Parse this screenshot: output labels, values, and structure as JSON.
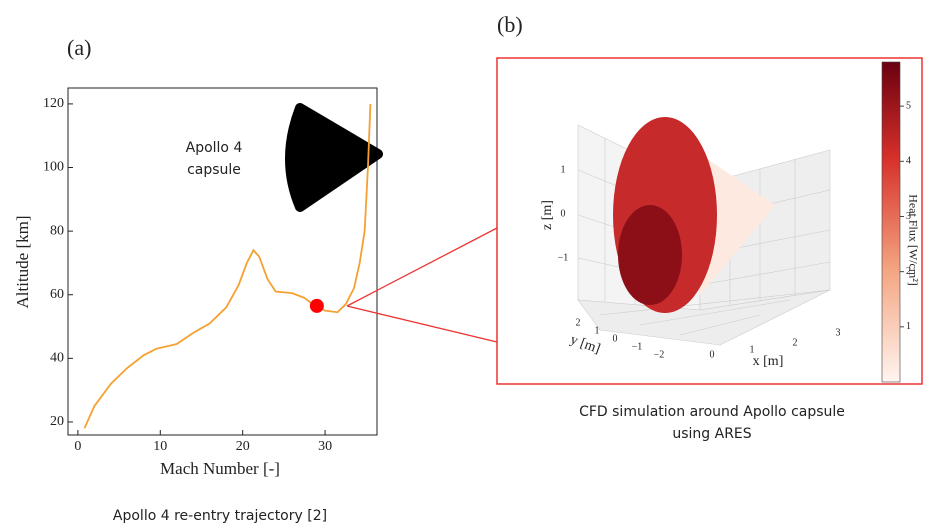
{
  "chart_data": {
    "type": "line",
    "x_label": "Mach Number [-]",
    "y_label": "Altitude [km]",
    "x": [
      0.8,
      2,
      4,
      6,
      8,
      9.5,
      12,
      14,
      16,
      18,
      19.5,
      20.5,
      21.3,
      22,
      23,
      24,
      26,
      27.5,
      28.5,
      30,
      31.5,
      32.5,
      33.5,
      34.2,
      34.8,
      35.2,
      35.5
    ],
    "series": [
      {
        "color": "#f5a030",
        "values": [
          18,
          25,
          32,
          37,
          41,
          43,
          44.5,
          48,
          51,
          56,
          63,
          70,
          74,
          72,
          65,
          61,
          60.5,
          59,
          57,
          55,
          54.5,
          57,
          62,
          70,
          80,
          100,
          120
        ]
      }
    ],
    "highlight": {
      "x": 29,
      "y": 56.5,
      "color": "#ff0000"
    },
    "xlim": [
      -1.2,
      36.3
    ],
    "ylim": [
      15.9,
      125
    ],
    "xticks": [
      0,
      10,
      20,
      30
    ],
    "yticks": [
      20,
      40,
      60,
      80,
      100,
      120
    ],
    "annotation": "Apollo 4\ncapsule"
  },
  "panel_labels": {
    "a": "(a)",
    "b": "(b)"
  },
  "captions": {
    "a": "Apollo 4 re-entry trajectory [2]",
    "b": [
      "CFD simulation around Apollo capsule",
      "using ARES"
    ]
  },
  "panel_b": {
    "z_label": "z [m]",
    "y_label": "y [m]",
    "x_label": "x [m]",
    "colorbar_label": "Heat Flux [W/cm²]",
    "z_ticks": [
      "1",
      "0",
      "−1"
    ],
    "y_ticks": [
      "2",
      "1",
      "0",
      "−1",
      "−2"
    ],
    "x_ticks": [
      "0",
      "1",
      "2",
      "3"
    ],
    "colorbar_ticks": [
      1,
      2,
      3,
      4,
      5
    ]
  }
}
